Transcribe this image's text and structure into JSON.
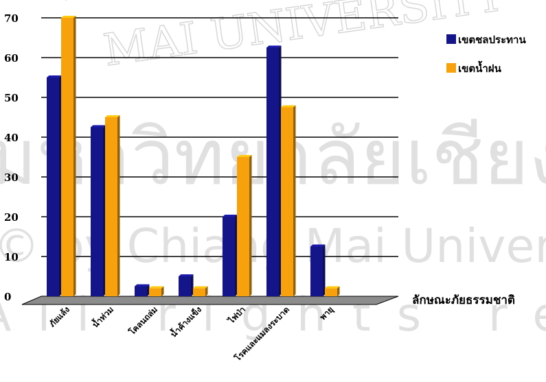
{
  "chart_data": {
    "type": "bar",
    "categories": [
      "ภัยแล้ง",
      "น้ำท่วม",
      "โคลนถล่ม",
      "น้ำค้างแข็ง",
      "ไฟป่า",
      "โรคและแมลงระบาด",
      "พายุ"
    ],
    "series": [
      {
        "name": "เขตชลประทาน",
        "values": [
          55,
          42.5,
          2.5,
          5,
          20,
          62.5,
          12.5
        ]
      },
      {
        "name": "เขตน้ำฝน",
        "values": [
          70,
          45,
          2,
          2,
          35,
          47.5,
          2
        ]
      }
    ],
    "y_ticks": [
      "0",
      "10",
      "20",
      "30",
      "40",
      "50",
      "60",
      "70"
    ],
    "ylim": [
      0,
      70
    ],
    "xlabel": "ลักษณะภัยธรรมชาติ",
    "ylabel": "",
    "title": "",
    "grid": true,
    "legend_position": "top-right",
    "colors": {
      "series1": "#15158a",
      "series2": "#f7a10c",
      "floor": "#8c8c8c"
    }
  },
  "watermark": {
    "arc_text": "MAI UNIVERSITY",
    "thai_text": "มหาวิทยาลัยเชียงใหม่",
    "copyright_text": "© by Chiang Mai University",
    "rights_text": "All rights reserved"
  }
}
